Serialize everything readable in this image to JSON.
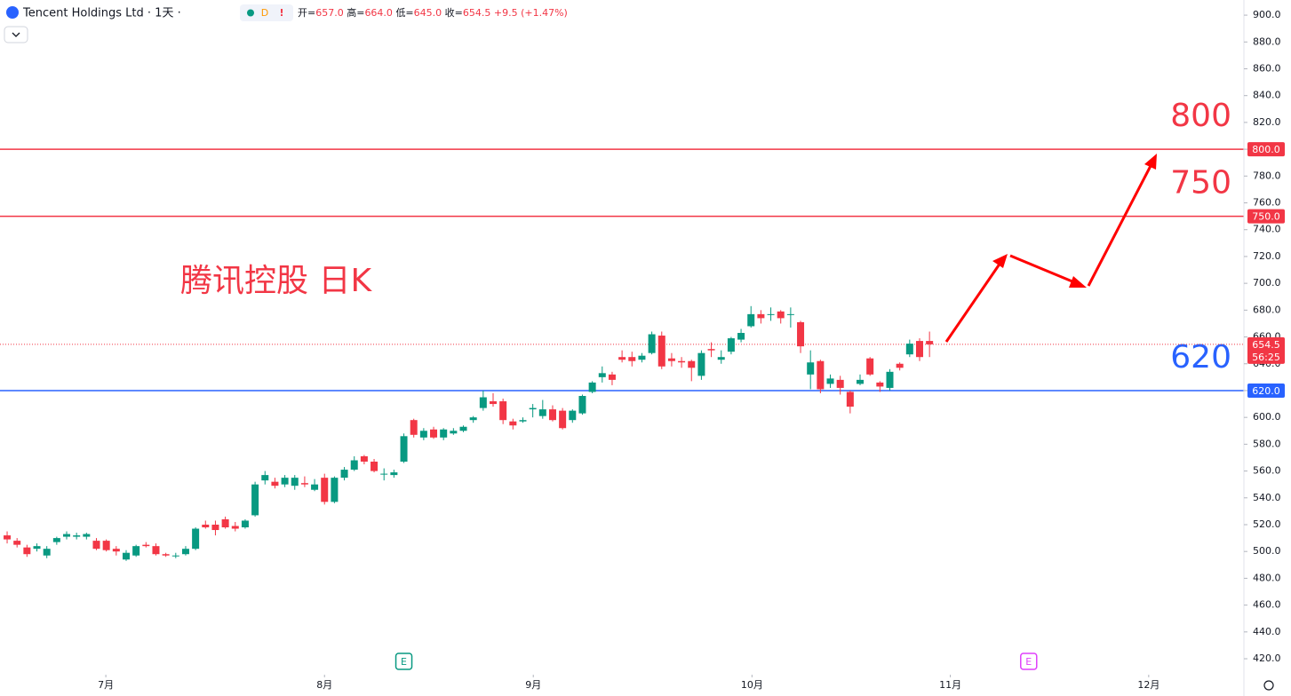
{
  "header": {
    "title": "Tencent Holdings Ltd · 1天 ·",
    "badge": "D",
    "alert": "!",
    "ohlc": [
      {
        "label": "开=",
        "value": "657.0"
      },
      {
        "label": "高=",
        "value": "664.0"
      },
      {
        "label": "低=",
        "value": "645.0"
      },
      {
        "label": "收=",
        "value": "654.5"
      }
    ],
    "change": "+9.5 (+1.47%)"
  },
  "chart_data": {
    "type": "candlestick",
    "annotation": "腾讯控股 日K",
    "up_color": "#089981",
    "down_color": "#f23645",
    "x": [
      0,
      1,
      2,
      3,
      4,
      5,
      6,
      7,
      8,
      9,
      10,
      11,
      12,
      13,
      14,
      15,
      16,
      17,
      18,
      19,
      20,
      21,
      22,
      23,
      24,
      25,
      26,
      27,
      28,
      29,
      30,
      31,
      32,
      33,
      34,
      35,
      36,
      37,
      38,
      39,
      40,
      41,
      42,
      43,
      44,
      45,
      46,
      47,
      48,
      49,
      50,
      51,
      52,
      53,
      54,
      55,
      56,
      57,
      58,
      59,
      60,
      61,
      62,
      63,
      64,
      65,
      66,
      67,
      68,
      69,
      70,
      71,
      72,
      73,
      74,
      75,
      76,
      77,
      78,
      79,
      80,
      81,
      82,
      83,
      84,
      85,
      86,
      87,
      88,
      89,
      90,
      91,
      92,
      93
    ],
    "open": [
      512,
      508,
      503,
      502,
      497,
      507,
      511,
      511,
      511,
      508,
      508,
      502,
      494,
      497,
      505,
      504,
      498,
      497,
      498,
      502,
      520,
      520,
      524,
      519,
      518,
      527,
      553,
      552,
      550,
      549,
      551,
      546,
      555,
      537,
      555,
      561,
      571,
      567,
      558,
      557,
      567,
      598,
      585,
      591,
      585,
      588,
      590,
      598,
      607,
      612,
      612,
      597,
      597,
      606,
      601,
      606,
      605,
      598,
      603,
      619,
      630,
      632,
      645,
      645,
      643,
      648,
      661,
      644,
      642,
      642,
      631,
      651,
      643,
      649,
      658,
      668,
      677,
      677,
      679,
      677,
      671,
      632,
      642,
      625,
      628,
      619,
      625,
      644,
      626,
      622,
      640,
      647,
      657,
      657
    ],
    "high": [
      515,
      510,
      505,
      506,
      504,
      511,
      515,
      514,
      514,
      510,
      509,
      504,
      501,
      505,
      507,
      506,
      499,
      499,
      504,
      518,
      523,
      523,
      526,
      522,
      524,
      552,
      560,
      555,
      557,
      557,
      556,
      554,
      558,
      556,
      563,
      571,
      572,
      569,
      562,
      561,
      588,
      599,
      592,
      593,
      592,
      592,
      594,
      601,
      620,
      618,
      614,
      599,
      600,
      610,
      613,
      609,
      607,
      606,
      617,
      627,
      638,
      634,
      650,
      649,
      648,
      664,
      664,
      648,
      645,
      643,
      650,
      656,
      650,
      660,
      666,
      683,
      680,
      682,
      680,
      682,
      672,
      650,
      643,
      632,
      631,
      620,
      632,
      645,
      627,
      636,
      641,
      658,
      659,
      664
    ],
    "low": [
      506,
      503,
      496,
      500,
      495,
      505,
      509,
      509,
      509,
      501,
      500,
      497,
      493,
      496,
      503,
      497,
      496,
      495,
      497,
      501,
      517,
      512,
      517,
      515,
      517,
      526,
      550,
      547,
      548,
      546,
      548,
      545,
      535,
      536,
      553,
      560,
      565,
      559,
      553,
      555,
      566,
      585,
      583,
      584,
      583,
      587,
      589,
      596,
      605,
      608,
      595,
      591,
      596,
      600,
      599,
      597,
      591,
      596,
      602,
      618,
      626,
      624,
      641,
      638,
      641,
      647,
      636,
      638,
      637,
      627,
      628,
      645,
      640,
      647,
      656,
      667,
      670,
      672,
      670,
      667,
      648,
      621,
      618,
      622,
      617,
      603,
      624,
      631,
      619,
      620,
      635,
      645,
      642,
      645
    ],
    "close": [
      509,
      505,
      498,
      504,
      502,
      510,
      513,
      512,
      513,
      502,
      501,
      500,
      499,
      504,
      504,
      498,
      497,
      497,
      502,
      517,
      518,
      516,
      518,
      517,
      523,
      550,
      557,
      549,
      555,
      555,
      550,
      550,
      537,
      555,
      561,
      568,
      567,
      560,
      558,
      559,
      586,
      587,
      590,
      585,
      591,
      590,
      593,
      600,
      615,
      610,
      598,
      594,
      598,
      607,
      606,
      598,
      592,
      605,
      616,
      626,
      633,
      628,
      643,
      642,
      646,
      662,
      638,
      642,
      641,
      637,
      648,
      650,
      645,
      659,
      663,
      677,
      674,
      677,
      674,
      677,
      653,
      641,
      621,
      629,
      622,
      608,
      628,
      632,
      623,
      634,
      637,
      655,
      645,
      654.5
    ],
    "xlim": [
      -0.72,
      124.7
    ],
    "xticks": [
      {
        "value": 9.95,
        "label": "7月"
      },
      {
        "value": 32.0,
        "label": "8月"
      },
      {
        "value": 53.05,
        "label": "9月"
      },
      {
        "value": 75.1,
        "label": "10月"
      },
      {
        "value": 95.1,
        "label": "11月"
      },
      {
        "value": 115.1,
        "label": "12月"
      }
    ],
    "ylim": [
      408.1,
      911.3
    ],
    "yticks": [
      {
        "value": 900,
        "label": "900.0"
      },
      {
        "value": 880,
        "label": "880.0"
      },
      {
        "value": 860,
        "label": "860.0"
      },
      {
        "value": 840,
        "label": "840.0"
      },
      {
        "value": 820,
        "label": "820.0"
      },
      {
        "value": 800,
        "label": "800.0"
      },
      {
        "value": 780,
        "label": "780.0"
      },
      {
        "value": 760,
        "label": "760.0"
      },
      {
        "value": 740,
        "label": "740.0"
      },
      {
        "value": 720,
        "label": "720.0"
      },
      {
        "value": 700,
        "label": "700.0"
      },
      {
        "value": 680,
        "label": "680.0"
      },
      {
        "value": 660,
        "label": "660.0"
      },
      {
        "value": 640,
        "label": "640.0"
      },
      {
        "value": 620,
        "label": "620.0"
      },
      {
        "value": 600,
        "label": "600.0"
      },
      {
        "value": 580,
        "label": "580.0"
      },
      {
        "value": 560,
        "label": "560.0"
      },
      {
        "value": 540,
        "label": "540.0"
      },
      {
        "value": 520,
        "label": "520.0"
      },
      {
        "value": 500,
        "label": "500.0"
      },
      {
        "value": 480,
        "label": "480.0"
      },
      {
        "value": 460,
        "label": "460.0"
      },
      {
        "value": 440,
        "label": "440.0"
      },
      {
        "value": 420,
        "label": "420.0"
      }
    ],
    "grid": false,
    "levels": [
      {
        "value": 800,
        "label": "800.0",
        "text": "800",
        "color": "#f23645"
      },
      {
        "value": 750,
        "label": "750.0",
        "text": "750",
        "color": "#f23645"
      },
      {
        "value": 620,
        "label": "620.0",
        "text": "620",
        "color": "#2962ff"
      }
    ],
    "last_price": {
      "value": 654.5,
      "label": "654.5",
      "countdown": "56:25",
      "color": "#f23645"
    },
    "events": [
      {
        "x": 40.0,
        "label": "E",
        "color": "#089981"
      },
      {
        "x": 103.0,
        "label": "E",
        "color": "#e040fb"
      }
    ]
  }
}
